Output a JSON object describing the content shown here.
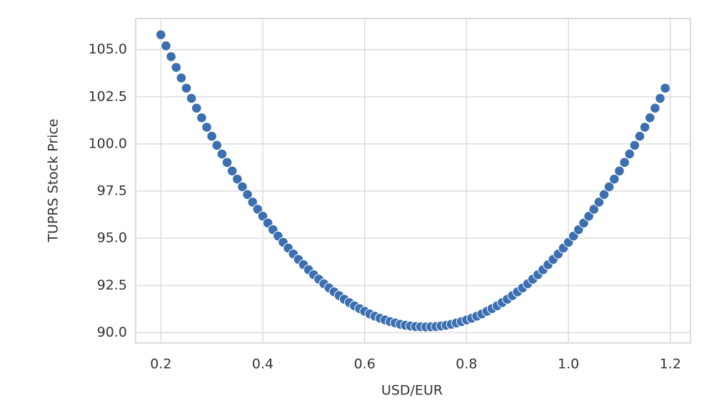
{
  "chart_data": {
    "type": "scatter",
    "xlabel": "USD/EUR",
    "ylabel": "TUPRS Stock Price",
    "color": "#3b6fb0",
    "grid": true,
    "xlim": [
      0.1505,
      1.2395
    ],
    "ylim": [
      89.45,
      106.65
    ],
    "xticks": [
      0.2,
      0.4,
      0.6,
      0.8,
      {
        "value": 1,
        "label": "1.0"
      },
      1.2
    ],
    "yticks": [
      {
        "value": 90,
        "label": "90.0"
      },
      92.5,
      {
        "value": 95,
        "label": "95.0"
      },
      97.5,
      {
        "value": 100,
        "label": "100.0"
      },
      102.5,
      {
        "value": 105,
        "label": "105.0"
      }
    ],
    "x": [
      0.2,
      0.21,
      0.22,
      0.23,
      0.24,
      0.25,
      0.26,
      0.27,
      0.28,
      0.29,
      0.3,
      0.31,
      0.32,
      0.33,
      0.34,
      0.35,
      0.36,
      0.37,
      0.38,
      0.39,
      0.4,
      0.41,
      0.42,
      0.43,
      0.44,
      0.45,
      0.46,
      0.47,
      0.48,
      0.49,
      0.5,
      0.51,
      0.52,
      0.53,
      0.54,
      0.55,
      0.56,
      0.57,
      0.58,
      0.59,
      0.6,
      0.61,
      0.62,
      0.63,
      0.64,
      0.65,
      0.66,
      0.67,
      0.68,
      0.69,
      0.7,
      0.71,
      0.72,
      0.73,
      0.74,
      0.75,
      0.76,
      0.77,
      0.78,
      0.79,
      0.8,
      0.81,
      0.82,
      0.83,
      0.84,
      0.85,
      0.86,
      0.87,
      0.88,
      0.89,
      0.9,
      0.91,
      0.92,
      0.93,
      0.94,
      0.95,
      0.96,
      0.97,
      0.98,
      0.99,
      1.0,
      1.01,
      1.02,
      1.03,
      1.04,
      1.05,
      1.06,
      1.07,
      1.08,
      1.09,
      1.1,
      1.11,
      1.12,
      1.13,
      1.14,
      1.15,
      1.16,
      1.17,
      1.18,
      1.19
    ],
    "values": [
      105.79,
      105.2,
      104.63,
      104.06,
      103.5,
      102.96,
      102.42,
      101.9,
      101.39,
      100.89,
      100.41,
      99.93,
      99.47,
      99.02,
      98.57,
      98.14,
      97.73,
      97.32,
      96.92,
      96.54,
      96.17,
      95.81,
      95.46,
      95.12,
      94.79,
      94.48,
      94.17,
      93.88,
      93.6,
      93.33,
      93.07,
      92.83,
      92.59,
      92.37,
      92.16,
      91.96,
      91.77,
      91.59,
      91.42,
      91.27,
      91.13,
      90.99,
      90.87,
      90.76,
      90.67,
      90.58,
      90.51,
      90.44,
      90.39,
      90.35,
      90.32,
      90.31,
      90.3,
      90.31,
      90.32,
      90.35,
      90.39,
      90.44,
      90.51,
      90.58,
      90.67,
      90.76,
      90.87,
      90.99,
      91.13,
      91.27,
      91.42,
      91.59,
      91.77,
      91.96,
      92.16,
      92.37,
      92.59,
      92.83,
      93.07,
      93.33,
      93.6,
      93.88,
      94.17,
      94.48,
      94.79,
      95.12,
      95.46,
      95.81,
      96.17,
      96.54,
      96.92,
      97.32,
      97.73,
      98.14,
      98.57,
      99.02,
      99.47,
      99.93,
      100.41,
      100.89,
      101.39,
      101.9,
      102.42,
      102.96
    ]
  }
}
